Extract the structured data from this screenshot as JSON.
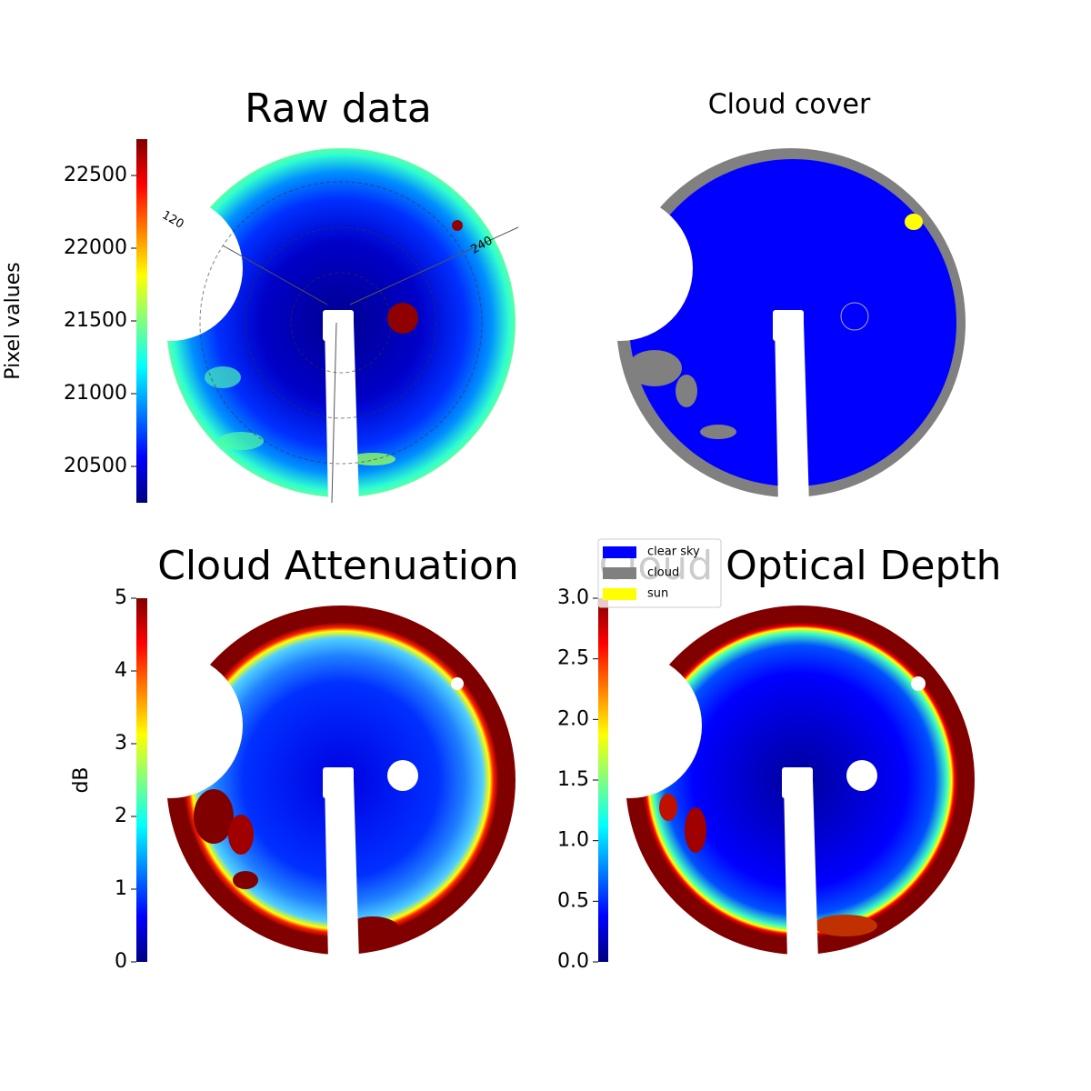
{
  "chart_data": [
    {
      "type": "image",
      "title": "Raw data",
      "colormap": "jet",
      "colorbar": {
        "label": "Pixel values",
        "lim": [
          20250,
          22750
        ],
        "ticks": [
          20500,
          21000,
          21500,
          22000,
          22500
        ]
      },
      "annotations": [
        "120",
        "240"
      ]
    },
    {
      "type": "image",
      "title": "Cloud cover",
      "series": [
        {
          "name": "clear sky",
          "color": "#0000ff"
        },
        {
          "name": "cloud",
          "color": "#808080"
        },
        {
          "name": "sun",
          "color": "#ffff00"
        }
      ]
    },
    {
      "type": "image",
      "title": "Cloud Attenuation",
      "colormap": "jet",
      "colorbar": {
        "label": "dB",
        "lim": [
          0,
          5
        ],
        "ticks": [
          0,
          1,
          2,
          3,
          4,
          5
        ]
      }
    },
    {
      "type": "image",
      "title": "Cloud Optical Depth",
      "colormap": "jet",
      "colorbar": {
        "lim": [
          0,
          3
        ],
        "ticks": [
          {
            "value": 0,
            "label": "0.0"
          },
          0.5,
          {
            "value": 1,
            "label": "1.0"
          },
          1.5,
          {
            "value": 2,
            "label": "2.0"
          },
          2.5,
          {
            "value": 3,
            "label": "3.0"
          }
        ]
      }
    }
  ]
}
